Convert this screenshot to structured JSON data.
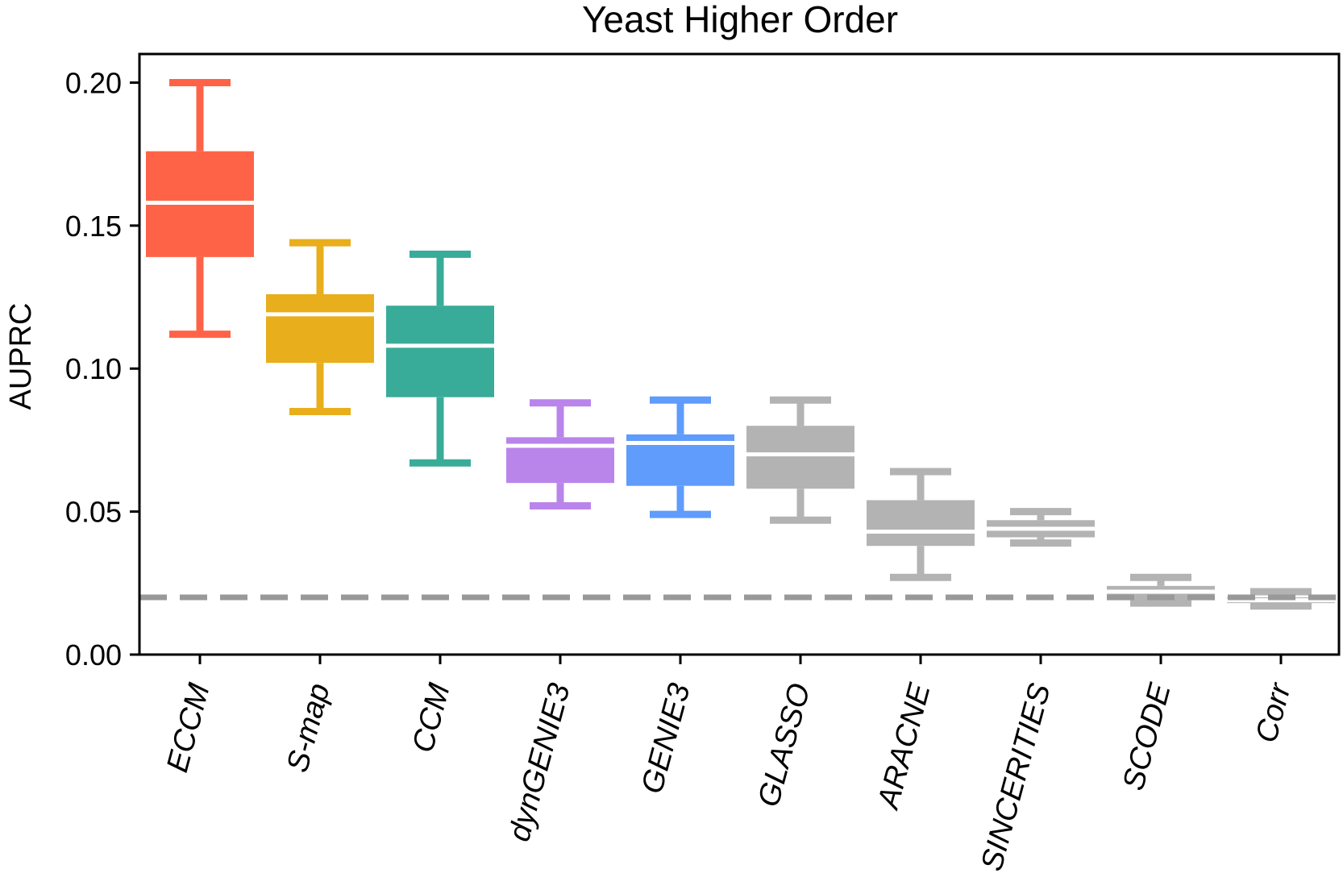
{
  "chart_data": {
    "type": "box",
    "title": "Yeast Higher Order",
    "xlabel": "",
    "ylabel": "AUPRC",
    "ylim": [
      0.0,
      0.21
    ],
    "yticks": [
      0.0,
      0.05,
      0.1,
      0.15,
      0.2
    ],
    "ytick_labels": [
      "0.00",
      "0.05",
      "0.10",
      "0.15",
      "0.20"
    ],
    "categories": [
      "ECCM",
      "S-map",
      "CCM",
      "dynGENIE3",
      "GENIE3",
      "GLASSO",
      "ARACNE",
      "SINCERITIES",
      "SCODE",
      "Corr"
    ],
    "boxes": [
      {
        "whisker_low": 0.112,
        "q1": 0.139,
        "median": 0.158,
        "q3": 0.176,
        "whisker_high": 0.2,
        "color": "#ff6347"
      },
      {
        "whisker_low": 0.085,
        "q1": 0.102,
        "median": 0.119,
        "q3": 0.126,
        "whisker_high": 0.144,
        "color": "#e8ae1c"
      },
      {
        "whisker_low": 0.067,
        "q1": 0.09,
        "median": 0.108,
        "q3": 0.122,
        "whisker_high": 0.14,
        "color": "#38ac98"
      },
      {
        "whisker_low": 0.052,
        "q1": 0.06,
        "median": 0.073,
        "q3": 0.076,
        "whisker_high": 0.088,
        "color": "#b985eb"
      },
      {
        "whisker_low": 0.049,
        "q1": 0.059,
        "median": 0.074,
        "q3": 0.077,
        "whisker_high": 0.089,
        "color": "#5f9cfb"
      },
      {
        "whisker_low": 0.047,
        "q1": 0.058,
        "median": 0.07,
        "q3": 0.08,
        "whisker_high": 0.089,
        "color": "#b3b3b3"
      },
      {
        "whisker_low": 0.027,
        "q1": 0.038,
        "median": 0.043,
        "q3": 0.054,
        "whisker_high": 0.064,
        "color": "#b3b3b3"
      },
      {
        "whisker_low": 0.039,
        "q1": 0.041,
        "median": 0.044,
        "q3": 0.047,
        "whisker_high": 0.05,
        "color": "#b3b3b3"
      },
      {
        "whisker_low": 0.018,
        "q1": 0.019,
        "median": 0.022,
        "q3": 0.024,
        "whisker_high": 0.027,
        "color": "#b3b3b3"
      },
      {
        "whisker_low": 0.017,
        "q1": 0.018,
        "median": 0.019,
        "q3": 0.02,
        "whisker_high": 0.022,
        "color": "#b3b3b3"
      }
    ],
    "baseline": {
      "y": 0.02,
      "color": "#999999",
      "style": "dashed"
    },
    "grid": false,
    "legend": "none"
  }
}
